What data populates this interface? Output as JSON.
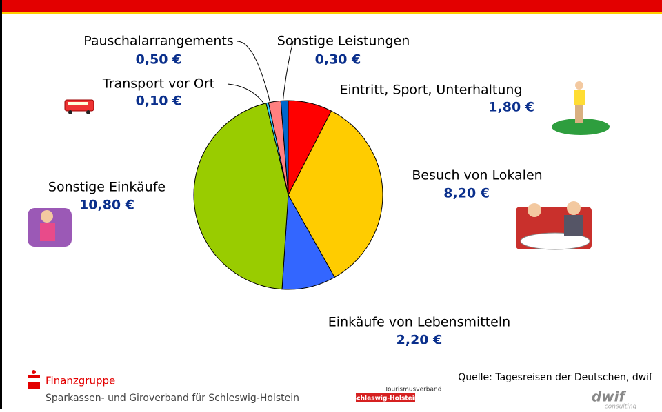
{
  "chart_data": {
    "type": "pie",
    "categories": [
      "Eintritt, Sport, Unterhaltung",
      "Besuch von Lokalen",
      "Einkäufe von Lebensmitteln",
      "Sonstige Einkäufe",
      "Transport vor Ort",
      "Pauschalarrangements",
      "Sonstige Leistungen"
    ],
    "values": [
      1.8,
      8.2,
      2.2,
      10.8,
      0.1,
      0.5,
      0.3
    ],
    "value_labels": [
      "1,80 €",
      "8,20 €",
      "2,20 €",
      "10,80 €",
      "0,10 €",
      "0,50 €",
      "0,30 €"
    ],
    "colors": [
      "#ff0000",
      "#ffcc00",
      "#3366ff",
      "#99cc00",
      "#33ccff",
      "#ff8080",
      "#0066cc"
    ]
  },
  "footer": {
    "brand": "Finanzgruppe",
    "organisation": "Sparkassen- und Giroverband für Schleswig-Holstein",
    "source": "Quelle: Tagesreisen der Deutschen, dwif",
    "logo_tourism_top": "Tourismusverband",
    "logo_tourism_bottom": "Schleswig-Holstein",
    "logo_dwif": "dwif",
    "logo_dwif_sub": "consulting"
  }
}
